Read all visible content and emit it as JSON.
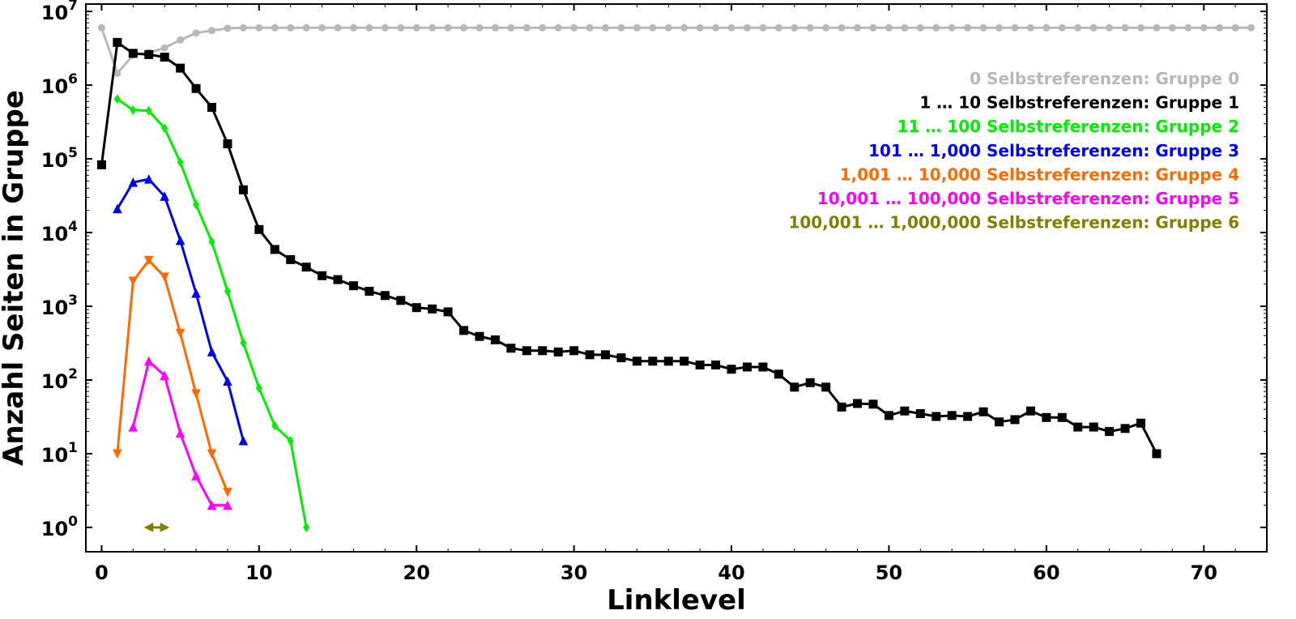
{
  "chart_data": {
    "type": "line",
    "xlabel": "Linklevel",
    "ylabel": "Anzahl Seiten in Gruppe",
    "xlim": [
      -1,
      74
    ],
    "ylim_log10": [
      -0.33,
      7.1
    ],
    "y_scale": "log",
    "grid": false,
    "legend_position": "top-right",
    "x_ticks": [
      0,
      10,
      20,
      30,
      40,
      50,
      60,
      70
    ],
    "y_ticks": [
      {
        "base": "10",
        "exp": "0"
      },
      {
        "base": "10",
        "exp": "1"
      },
      {
        "base": "10",
        "exp": "2"
      },
      {
        "base": "10",
        "exp": "3"
      },
      {
        "base": "10",
        "exp": "4"
      },
      {
        "base": "10",
        "exp": "5"
      },
      {
        "base": "10",
        "exp": "6"
      },
      {
        "base": "10",
        "exp": "7"
      }
    ],
    "series": [
      {
        "name": "0 Selbstreferenzen: Gruppe 0",
        "color": "#b8b8b8",
        "marker": "circle",
        "x": [
          0,
          1,
          2,
          3,
          4,
          5,
          6,
          7,
          8,
          9,
          10,
          11,
          12,
          13,
          14,
          15,
          16,
          17,
          18,
          19,
          20,
          21,
          22,
          23,
          24,
          25,
          26,
          27,
          28,
          29,
          30,
          31,
          32,
          33,
          34,
          35,
          36,
          37,
          38,
          39,
          40,
          41,
          42,
          43,
          44,
          45,
          46,
          47,
          48,
          49,
          50,
          51,
          52,
          53,
          54,
          55,
          56,
          57,
          58,
          59,
          60,
          61,
          62,
          63,
          64,
          65,
          66,
          67,
          68,
          69,
          70,
          71,
          72,
          73
        ],
        "y": [
          6000000,
          1450000,
          2550000,
          2750000,
          3200000,
          4100000,
          5100000,
          5500000,
          5900000,
          6000000,
          6000000,
          6000000,
          6000000,
          6000000,
          6000000,
          6000000,
          6000000,
          6000000,
          6000000,
          6000000,
          6000000,
          6000000,
          6000000,
          6000000,
          6000000,
          6000000,
          6000000,
          6000000,
          6000000,
          6000000,
          6000000,
          6000000,
          6000000,
          6000000,
          6000000,
          6000000,
          6000000,
          6000000,
          6000000,
          6000000,
          6000000,
          6000000,
          6000000,
          6000000,
          6000000,
          6000000,
          6000000,
          6000000,
          6000000,
          6000000,
          6000000,
          6000000,
          6000000,
          6000000,
          6000000,
          6000000,
          6000000,
          6000000,
          6000000,
          6000000,
          6000000,
          6000000,
          6000000,
          6000000,
          6000000,
          6000000,
          6000000,
          6000000,
          6000000,
          6000000,
          6000000,
          6000000,
          6000000,
          6000000
        ]
      },
      {
        "name": "1 … 10 Selbstreferenzen: Gruppe 1",
        "color": "#000000",
        "marker": "square",
        "x": [
          0,
          1,
          2,
          3,
          4,
          5,
          6,
          7,
          8,
          9,
          10,
          11,
          12,
          13,
          14,
          15,
          16,
          17,
          18,
          19,
          20,
          21,
          22,
          23,
          24,
          25,
          26,
          27,
          28,
          29,
          30,
          31,
          32,
          33,
          34,
          35,
          36,
          37,
          38,
          39,
          40,
          41,
          42,
          43,
          44,
          45,
          46,
          47,
          48,
          49,
          50,
          51,
          52,
          53,
          54,
          55,
          56,
          57,
          58,
          59,
          60,
          61,
          62,
          63,
          64,
          65,
          66,
          67
        ],
        "y": [
          83000,
          3800000,
          2700000,
          2600000,
          2400000,
          1700000,
          900000,
          500000,
          160000,
          38000,
          11000,
          5900,
          4300,
          3400,
          2600,
          2300,
          1900,
          1600,
          1400,
          1200,
          960,
          920,
          840,
          470,
          390,
          350,
          270,
          250,
          250,
          240,
          250,
          220,
          220,
          200,
          180,
          180,
          180,
          180,
          160,
          160,
          140,
          150,
          150,
          120,
          80,
          92,
          80,
          43,
          48,
          47,
          33,
          38,
          35,
          32,
          33,
          32,
          37,
          27,
          29,
          38,
          31,
          31,
          23,
          23,
          20,
          22,
          26,
          10
        ]
      },
      {
        "name": "11 … 100 Selbstreferenzen: Gruppe 2",
        "color": "#00ee00",
        "marker": "diamond",
        "x": [
          1,
          2,
          3,
          4,
          5,
          6,
          7,
          8,
          9,
          10,
          11,
          12,
          13
        ],
        "y": [
          650000,
          460000,
          450000,
          260000,
          90000,
          24000,
          7500,
          1600,
          320,
          78,
          24,
          15,
          1
        ]
      },
      {
        "name": "101 … 1,000 Selbstreferenzen: Gruppe 3",
        "color": "#0000ee",
        "marker": "triangle-up",
        "x": [
          1,
          2,
          3,
          4,
          5,
          6,
          7,
          8,
          9
        ],
        "y": [
          21000,
          48000,
          53000,
          31000,
          7800,
          1500,
          240,
          96,
          15
        ]
      },
      {
        "name": "1,001 … 10,000 Selbstreferenzen: Gruppe 4",
        "color": "#ff6a00",
        "marker": "triangle-down",
        "x": [
          1,
          2,
          3,
          4,
          5,
          6,
          7,
          8
        ],
        "y": [
          10,
          2200,
          4200,
          2500,
          430,
          65,
          10,
          3
        ]
      },
      {
        "name": "10,001 … 100,000 Selbstreferenzen: Gruppe 5",
        "color": "#ff00ff",
        "marker": "triangle-up",
        "x": [
          2,
          3,
          4,
          5,
          6,
          7,
          8
        ],
        "y": [
          23,
          180,
          115,
          19,
          5,
          2,
          2
        ]
      },
      {
        "name": "100,001 … 1,000,000 Selbstreferenzen: Gruppe 6",
        "color": "#808000",
        "marker": "triangle-sides",
        "x": [
          3,
          4
        ],
        "y": [
          1,
          1
        ]
      }
    ]
  }
}
